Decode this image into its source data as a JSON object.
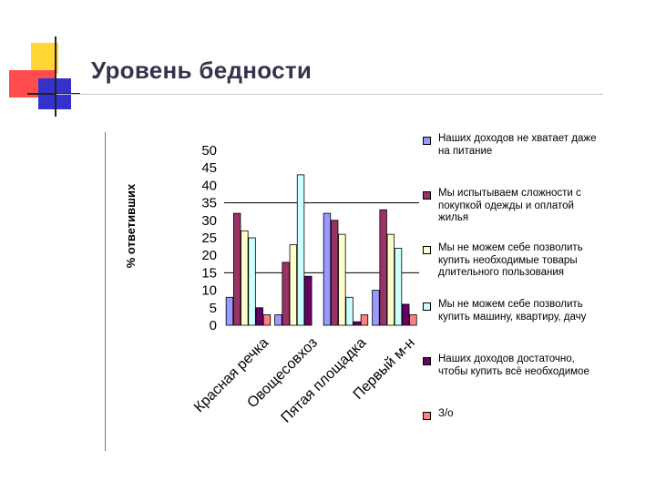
{
  "slide": {
    "title": "Уровень бедности"
  },
  "colors": {
    "title": "#33334d",
    "deco_yellow": "#ffd633",
    "deco_red": "#ff4d4d",
    "deco_blue": "#3333cc"
  },
  "chart_data": {
    "type": "bar",
    "ylabel": "% ответивших",
    "ylim": [
      0,
      50
    ],
    "yticks": [
      "0",
      "5",
      "10",
      "15",
      "20",
      "25",
      "30",
      "35",
      "40",
      "45",
      "50"
    ],
    "grid": "horizontal gridlines at 15 and 35",
    "legend_placement": "right",
    "categories": [
      "Красная речка",
      "Овощесовхоз",
      "Пятая площадка",
      "Первый м-н"
    ],
    "series": [
      {
        "name": "Наших доходов не хватает даже на питание",
        "color": "#9999ff",
        "values": [
          8,
          3,
          32,
          10
        ]
      },
      {
        "name": "Мы испытываем сложности с покупкой одежды и оплатой жилья",
        "color": "#993366",
        "values": [
          32,
          18,
          30,
          33
        ]
      },
      {
        "name": "Мы не можем себе позволить купить необходимые товары длительного пользования",
        "color": "#ffffcc",
        "values": [
          27,
          23,
          26,
          26
        ]
      },
      {
        "name": "Мы не можем себе позволить купить машину, квартиру, дачу",
        "color": "#ccffff",
        "values": [
          25,
          43,
          8,
          22
        ]
      },
      {
        "name": "Наших доходов достаточно, чтобы купить всё необходимое",
        "color": "#660066",
        "values": [
          5,
          14,
          1,
          6
        ]
      },
      {
        "name": "З/о",
        "color": "#ff8080",
        "values": [
          3,
          0,
          3,
          3
        ]
      }
    ]
  }
}
